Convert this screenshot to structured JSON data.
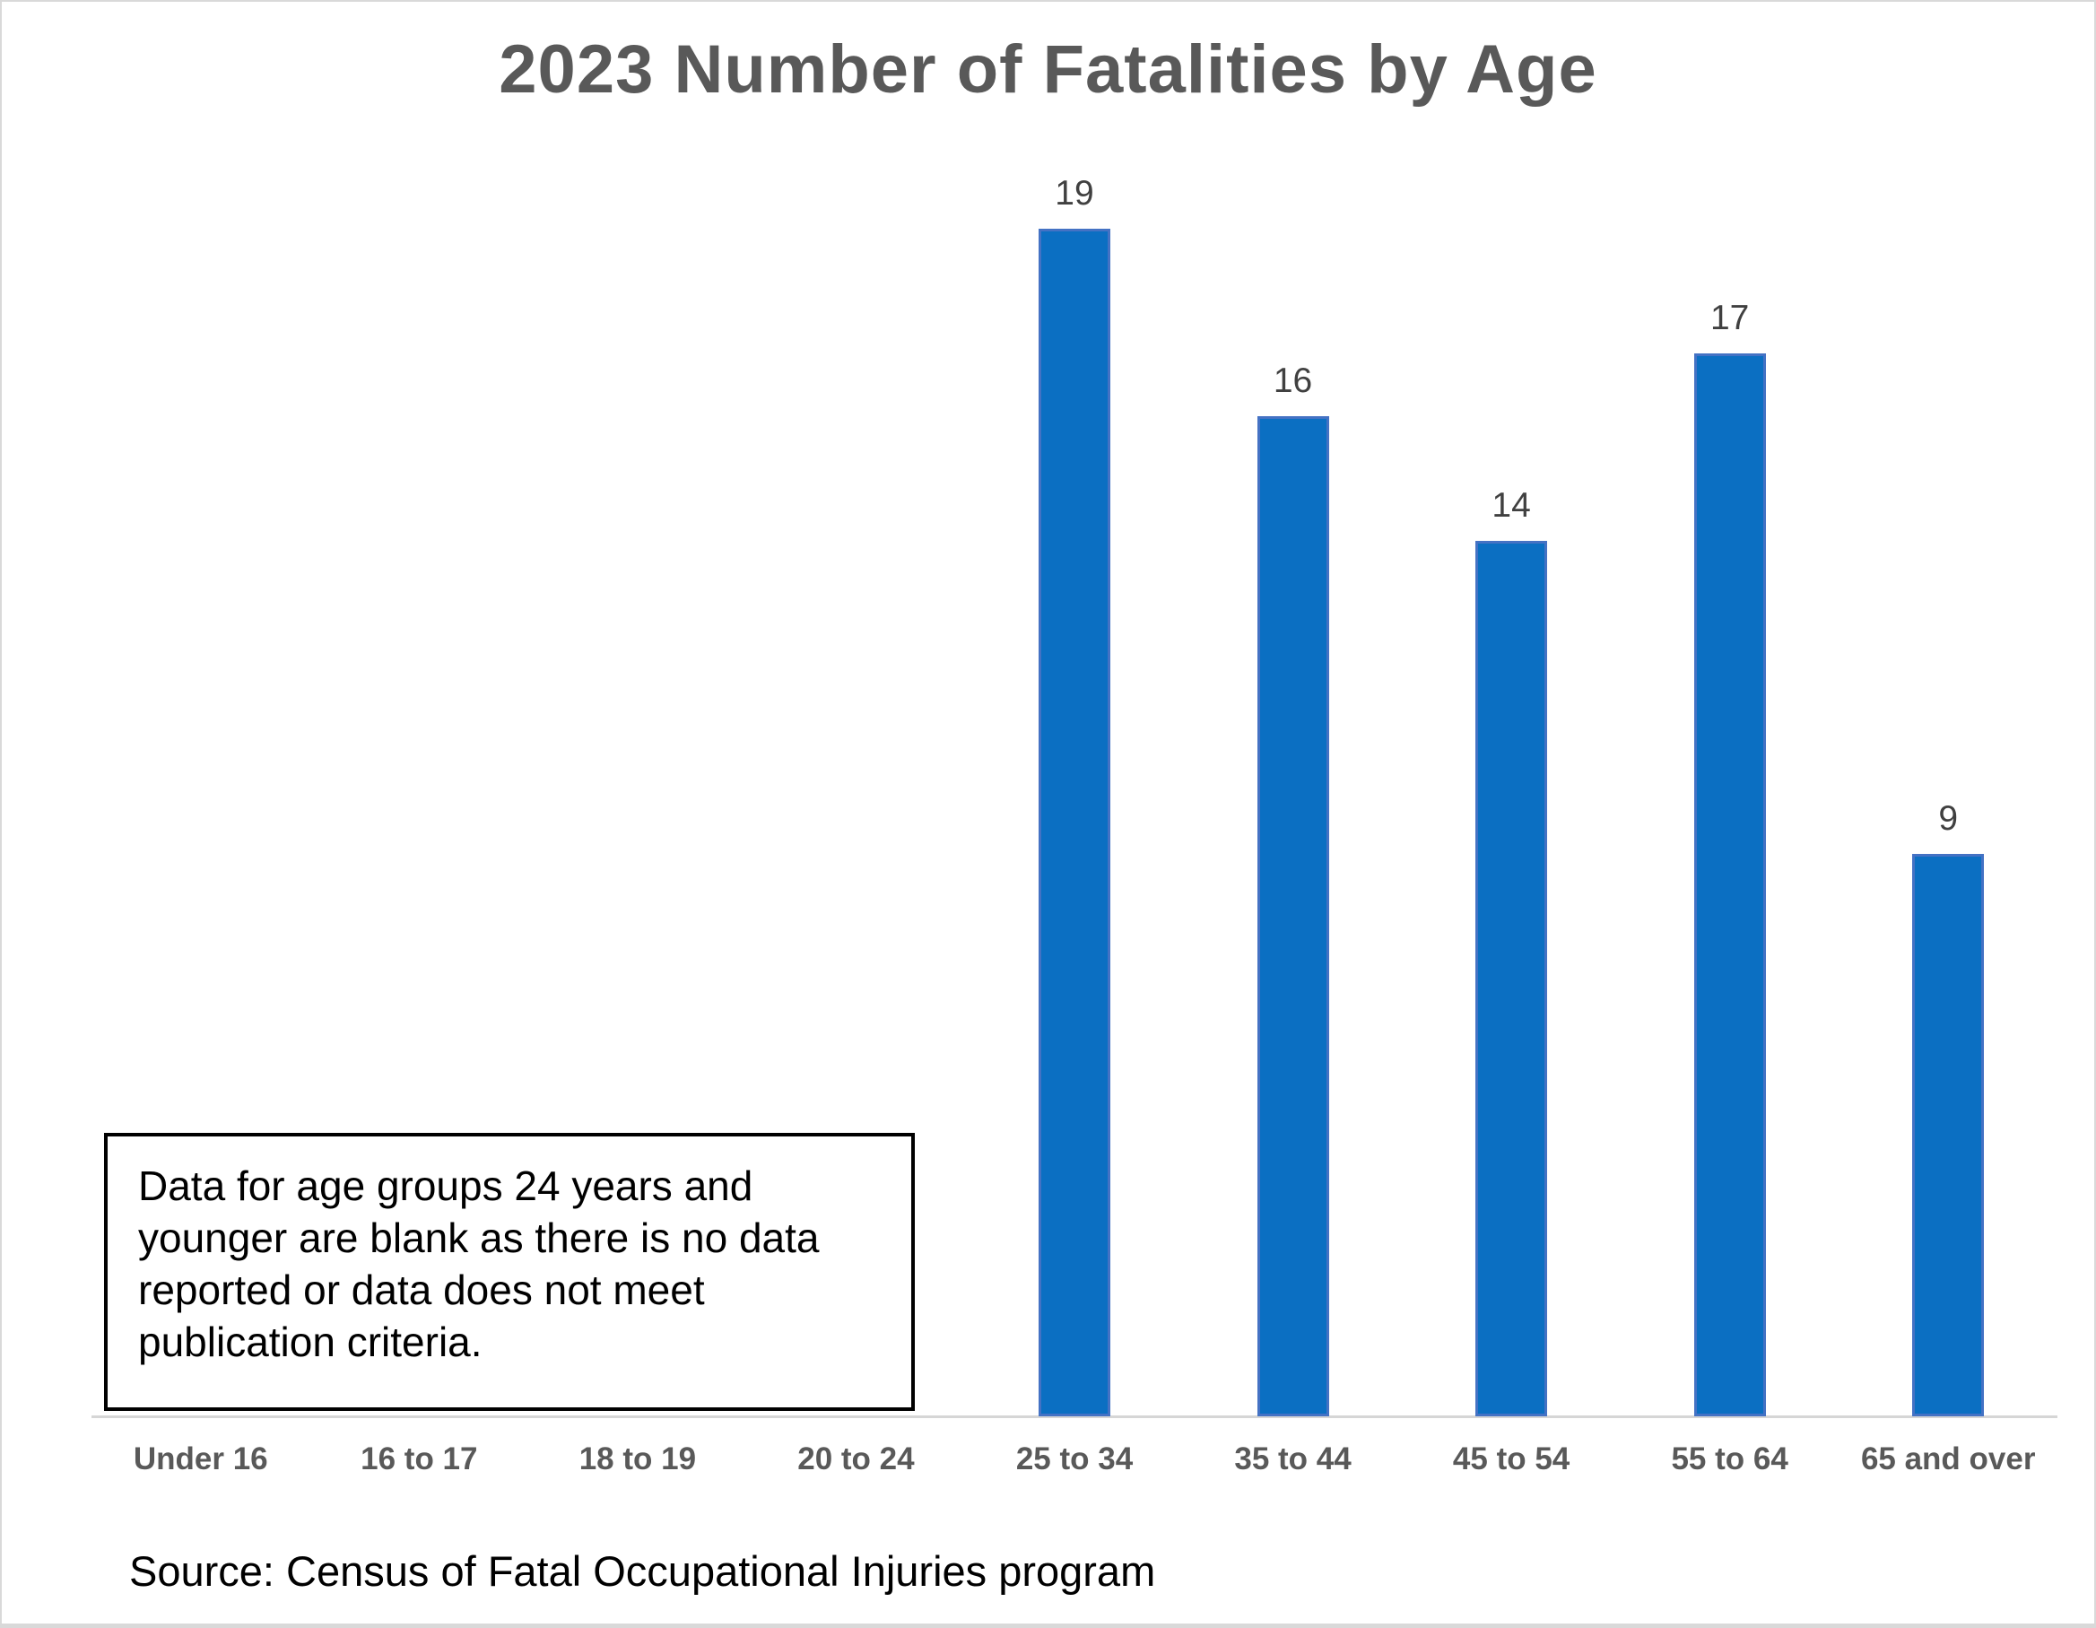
{
  "chart": {
    "title": "2023 Number of Fatalities by Age",
    "source_note": "Source: Census of Fatal Occupational Injuries program"
  },
  "note": {
    "lines": [
      "Data for age groups 24 years and",
      "younger are blank as there is no data",
      "reported or data does not meet",
      "publication criteria."
    ]
  },
  "chart_data": {
    "type": "bar",
    "title": "2023 Number of Fatalities by Age",
    "categories": [
      "Under 16",
      "16 to 17",
      "18 to 19",
      "20 to 24",
      "25 to 34",
      "35 to 44",
      "45 to 54",
      "55 to 64",
      "65 and over"
    ],
    "values": [
      null,
      null,
      null,
      null,
      19,
      16,
      14,
      17,
      9
    ],
    "xlabel": "",
    "ylabel": "",
    "ylim": [
      0,
      20
    ],
    "grid": false,
    "legend": false,
    "data_labels": true,
    "bar_color": "#0b6fc2",
    "bar_border_color": "#4472c4",
    "axis_line_color": "#d6d6d6",
    "title_color": "#595959",
    "label_color": "#404040",
    "annotation": "Data for age groups 24 years and younger are blank as there is no data reported or data does not meet publication criteria.",
    "source_note": "Source: Census of Fatal Occupational Injuries program"
  }
}
